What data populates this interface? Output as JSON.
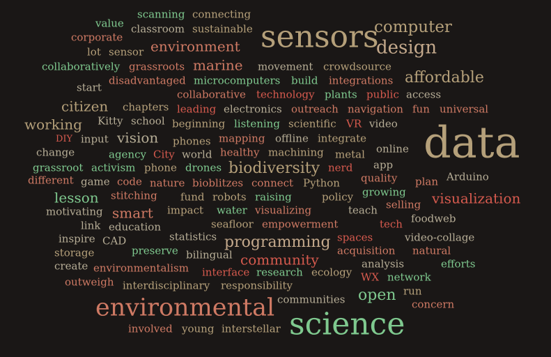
{
  "colors": {
    "background": "#1a1716",
    "green": "#7fc98f",
    "tan": "#b5a07a",
    "red": "#d65a4e",
    "salmon": "#cf7a64",
    "beige": "#c4a98c",
    "gray": "#b6ad96"
  },
  "words": [
    "scanning",
    "connecting",
    "value",
    "classroom",
    "sustainable",
    "computer",
    "corporate",
    "sensors",
    "environment",
    "design",
    "lot",
    "sensor",
    "collaboratively",
    "grassroots",
    "marine",
    "movement",
    "crowdsource",
    "affordable",
    "disadvantaged",
    "microcomputers",
    "build",
    "integrations",
    "start",
    "collaborative",
    "technology",
    "plants",
    "public",
    "access",
    "citizen",
    "chapters",
    "leading",
    "electronics",
    "outreach",
    "navigation",
    "fun",
    "universal",
    "Kitty",
    "school",
    "beginning",
    "listening",
    "scientific",
    "VR",
    "video",
    "working",
    "data",
    "DIY",
    "input",
    "vision",
    "phones",
    "mapping",
    "offline",
    "integrate",
    "change",
    "agency",
    "City",
    "world",
    "healthy",
    "machining",
    "metal",
    "online",
    "grassroot",
    "activism",
    "phone",
    "drones",
    "biodiversity",
    "nerd",
    "app",
    "different",
    "game",
    "code",
    "nature",
    "bioblitzes",
    "connect",
    "Python",
    "quality",
    "Arduino",
    "plan",
    "growing",
    "lesson",
    "stitching",
    "fund",
    "robots",
    "raising",
    "policy",
    "visualization",
    "impact",
    "selling",
    "motivating",
    "smart",
    "water",
    "visualizing",
    "teach",
    "foodweb",
    "link",
    "education",
    "seafloor",
    "empowerment",
    "tech",
    "statistics",
    "inspire",
    "CAD",
    "spaces",
    "video-collage",
    "programming",
    "preserve",
    "storage",
    "bilingual",
    "acquisition",
    "natural",
    "community",
    "create",
    "environmentalism",
    "analysis",
    "efforts",
    "interface",
    "research",
    "ecology",
    "WX",
    "network",
    "outweigh",
    "interdisciplinary",
    "responsibility",
    "environmental",
    "run",
    "open",
    "communities",
    "concern",
    "science",
    "involved",
    "young",
    "interstellar"
  ]
}
